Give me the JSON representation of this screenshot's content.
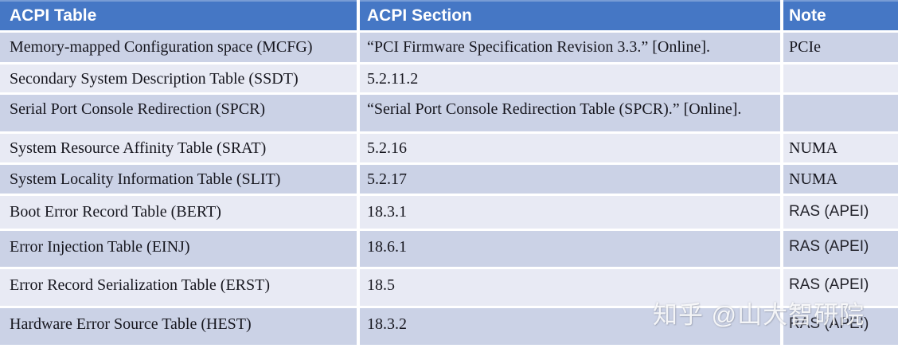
{
  "colors": {
    "header_blue": "#4577c5",
    "band_dark": "#cbd2e6",
    "band_light": "#e8eaf4",
    "ink": "#17171f"
  },
  "watermark": {
    "text": "知乎 @山大智研院"
  },
  "table": {
    "columns": [
      {
        "label": "ACPI Table"
      },
      {
        "label": "ACPI Section"
      },
      {
        "label": "Note"
      }
    ],
    "rows": [
      {
        "acpi_table": "Memory-mapped Configuration space (MCFG)",
        "acpi_section": "“PCI Firmware Specification Revision 3.3.” [Online].",
        "note": "PCIe"
      },
      {
        "acpi_table": "Secondary System Description Table (SSDT)",
        "acpi_section": "5.2.11.2",
        "note": ""
      },
      {
        "acpi_table": "Serial Port Console Redirection (SPCR)",
        "acpi_section": "“Serial Port Console Redirection Table (SPCR).” [Online].",
        "note": ""
      },
      {
        "acpi_table": "System Resource Affinity Table (SRAT)",
        "acpi_section": "5.2.16",
        "note": "NUMA"
      },
      {
        "acpi_table": "System Locality Information Table (SLIT)",
        "acpi_section": "5.2.17",
        "note": "NUMA"
      },
      {
        "acpi_table": "Boot Error Record Table (BERT)",
        "acpi_section": "18.3.1",
        "note": "RAS (APEI)"
      },
      {
        "acpi_table": "Error Injection Table (EINJ)",
        "acpi_section": "18.6.1",
        "note": "RAS (APEI)"
      },
      {
        "acpi_table": "Error Record Serialization Table (ERST)",
        "acpi_section": "18.5",
        "note": "RAS (APEI)"
      },
      {
        "acpi_table": "Hardware Error Source Table (HEST)",
        "acpi_section": "18.3.2",
        "note": "RAS (APEI)"
      }
    ]
  }
}
